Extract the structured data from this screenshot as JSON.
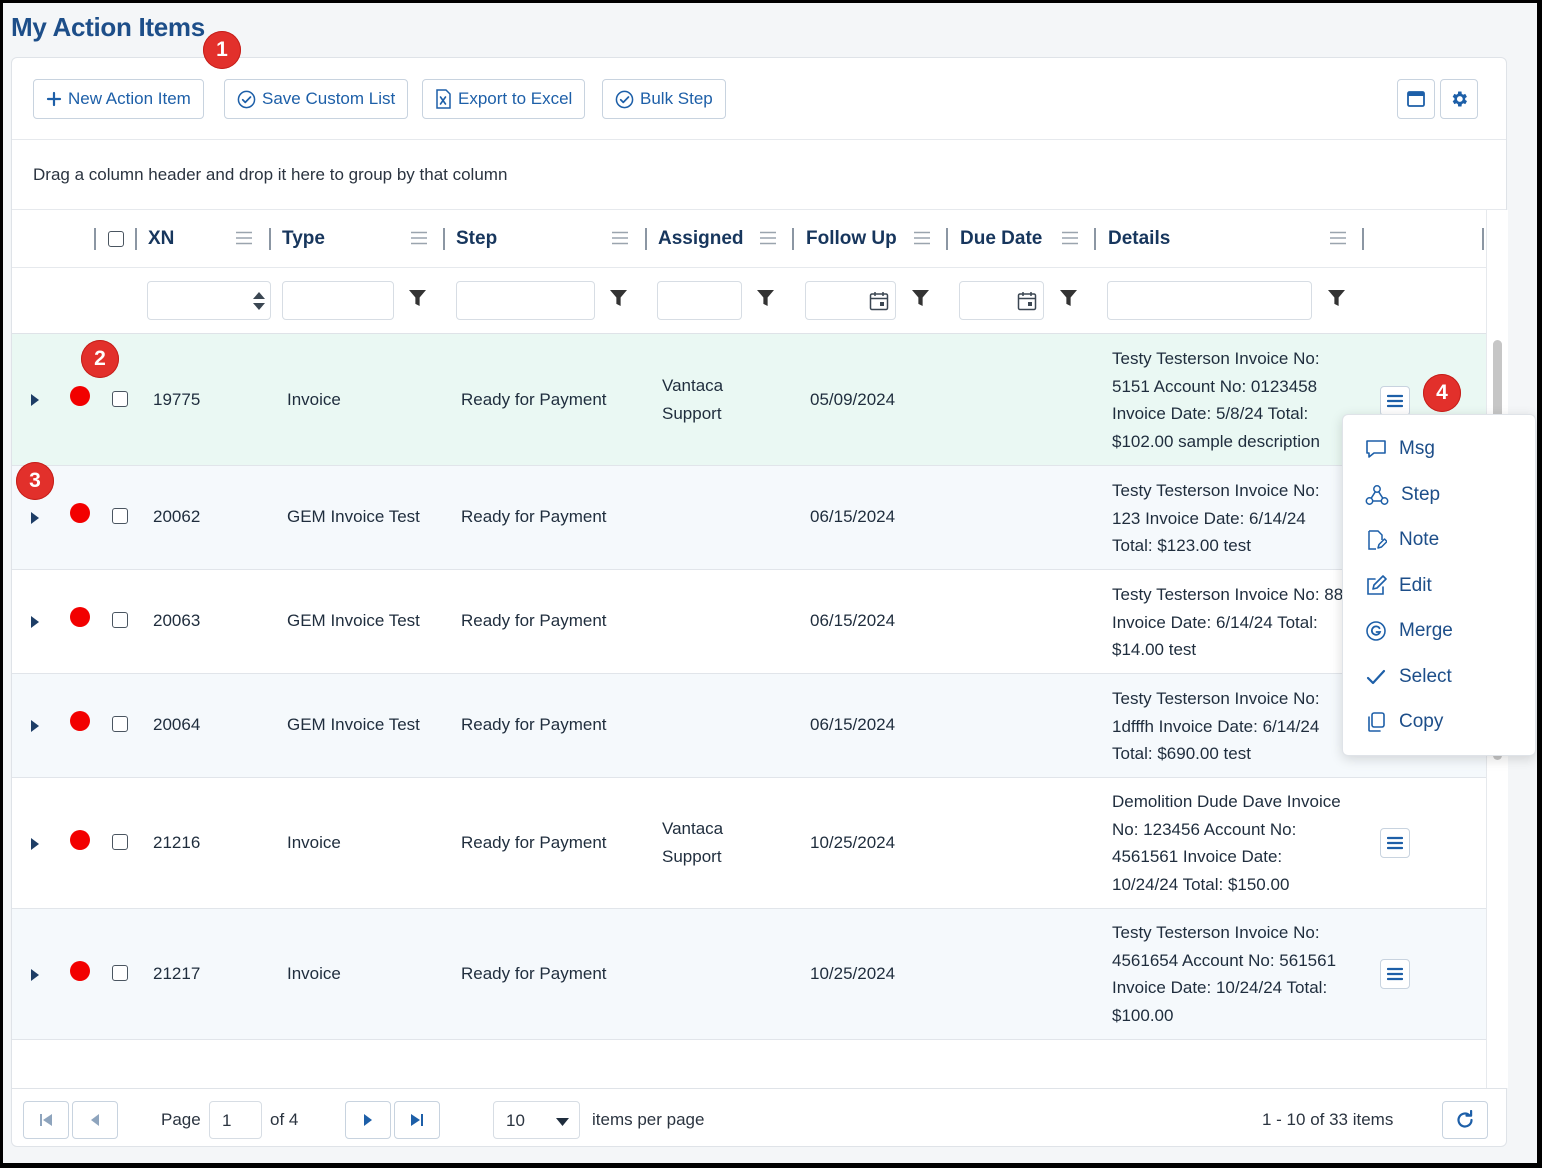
{
  "page": {
    "title": "My Action Items"
  },
  "badges": [
    "1",
    "2",
    "3",
    "4"
  ],
  "toolbar": {
    "new_label": "New Action Item",
    "save_label": "Save Custom List",
    "export_label": "Export to Excel",
    "bulk_label": "Bulk Step"
  },
  "grid": {
    "group_hint": "Drag a column header and drop it here to group by that column",
    "columns": {
      "xn": "XN",
      "type": "Type",
      "step": "Step",
      "assigned": "Assigned",
      "follow_up": "Follow Up",
      "due_date": "Due Date",
      "details": "Details"
    },
    "rows": [
      {
        "xn": "19775",
        "type": "Invoice",
        "step": "Ready for Payment",
        "assigned": "Vantaca Support",
        "follow_up": "05/09/2024",
        "due_date": "",
        "details": "Testy Testerson Invoice No: 5151 Account No: 0123458 Invoice Date: 5/8/24 Total: $102.00 sample description"
      },
      {
        "xn": "20062",
        "type": "GEM Invoice Test",
        "step": "Ready for Payment",
        "assigned": "",
        "follow_up": "06/15/2024",
        "due_date": "",
        "details": "Testy Testerson Invoice No: 123 Invoice Date: 6/14/24 Total: $123.00 test"
      },
      {
        "xn": "20063",
        "type": "GEM Invoice Test",
        "step": "Ready for Payment",
        "assigned": "",
        "follow_up": "06/15/2024",
        "due_date": "",
        "details": "Testy Testerson Invoice No: 88 Invoice Date: 6/14/24 Total: $14.00 test"
      },
      {
        "xn": "20064",
        "type": "GEM Invoice Test",
        "step": "Ready for Payment",
        "assigned": "",
        "follow_up": "06/15/2024",
        "due_date": "",
        "details": "Testy Testerson Invoice No: 1dfffh Invoice Date: 6/14/24 Total: $690.00 test"
      },
      {
        "xn": "21216",
        "type": "Invoice",
        "step": "Ready for Payment",
        "assigned": "Vantaca Support",
        "follow_up": "10/25/2024",
        "due_date": "",
        "details": "Demolition Dude Dave Invoice No: 123456 Account No: 4561561 Invoice Date: 10/24/24 Total: $150.00"
      },
      {
        "xn": "21217",
        "type": "Invoice",
        "step": "Ready for Payment",
        "assigned": "",
        "follow_up": "10/25/2024",
        "due_date": "",
        "details": "Testy Testerson Invoice No: 4561654 Account No: 561561 Invoice Date: 10/24/24 Total: $100.00"
      }
    ]
  },
  "row_menu": {
    "items": [
      {
        "label": "Msg",
        "icon": "message-icon"
      },
      {
        "label": "Step",
        "icon": "workflow-icon"
      },
      {
        "label": "Note",
        "icon": "note-icon"
      },
      {
        "label": "Edit",
        "icon": "edit-icon"
      },
      {
        "label": "Merge",
        "icon": "merge-icon"
      },
      {
        "label": "Select",
        "icon": "check-icon"
      },
      {
        "label": "Copy",
        "icon": "copy-icon"
      }
    ]
  },
  "pager": {
    "page_label": "Page",
    "current_page": "1",
    "of_label": "of 4",
    "page_size": "10",
    "per_page_label": "items per page",
    "summary": "1 - 10 of 33 items"
  },
  "colors": {
    "accent": "#1d5fa8",
    "title": "#1d4e89",
    "status_dot": "#f20000",
    "badge": "#e2302b",
    "selected_row": "#eaf8f3"
  }
}
